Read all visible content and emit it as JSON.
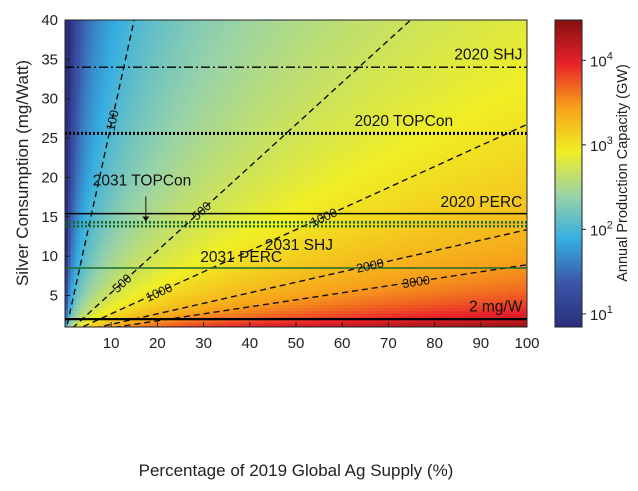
{
  "chart_data": {
    "type": "heatmap",
    "title": "",
    "xlabel": "Percentage of 2019 Global Ag Supply (%)",
    "ylabel": "Silver Consumption (mg/Watt)",
    "xlim": [
      0,
      100
    ],
    "ylim": [
      1,
      40
    ],
    "x_ticks": [
      10,
      20,
      30,
      40,
      50,
      60,
      70,
      80,
      90,
      100
    ],
    "y_ticks": [
      5,
      10,
      15,
      20,
      25,
      30,
      35,
      40
    ],
    "grid": false,
    "surface": {
      "quantity": "Annual Production Capacity (GW)",
      "relation": "capacity_gw = 267.3 * x_percent / y_mg_per_watt",
      "supply_factor": 267.3,
      "scale": "log"
    },
    "colorbar": {
      "label": "Annual Production Capacity (GW)",
      "scale": "log",
      "range": [
        7,
        30000
      ],
      "ticks": [
        {
          "value": 10,
          "base": "10",
          "exp": "1"
        },
        {
          "value": 100,
          "base": "10",
          "exp": "2"
        },
        {
          "value": 1000,
          "base": "10",
          "exp": "3"
        },
        {
          "value": 10000,
          "base": "10",
          "exp": "4"
        }
      ],
      "colors": [
        "#2a2e7c",
        "#3b55a8",
        "#36aee2",
        "#9ad3a6",
        "#f0ee24",
        "#f7a21a",
        "#e8222a",
        "#860f10"
      ]
    },
    "contours": [
      {
        "label": "100",
        "value": 100
      },
      {
        "label": "500",
        "value": 500
      },
      {
        "label": "500",
        "value": 500
      },
      {
        "label": "1000",
        "value": 1000
      },
      {
        "label": "1000",
        "value": 1000
      },
      {
        "label": "2000",
        "value": 2000
      },
      {
        "label": "3000",
        "value": 3000
      }
    ],
    "reference_lines": [
      {
        "label": "2020 SHJ",
        "y": 34,
        "style": "dashdot",
        "color": "#000000"
      },
      {
        "label": "2020 TOPCon",
        "y": 25.6,
        "style": "dotted",
        "color": "#000000"
      },
      {
        "label": "2020 PERC",
        "y": 15.4,
        "style": "solid",
        "color": "#000000"
      },
      {
        "label": "2031 SHJ",
        "y": 14.3,
        "style": "dotted",
        "color": "#1b6a2e"
      },
      {
        "label": "2031 TOPCon",
        "y": 13.8,
        "style": "dotted",
        "color": "#1b6a2e"
      },
      {
        "label": "2031 PERC",
        "y": 8.5,
        "style": "solid",
        "color": "#1b6a2e"
      },
      {
        "label": "2 mg/W",
        "y": 2,
        "style": "solid",
        "color": "#000000"
      }
    ]
  }
}
